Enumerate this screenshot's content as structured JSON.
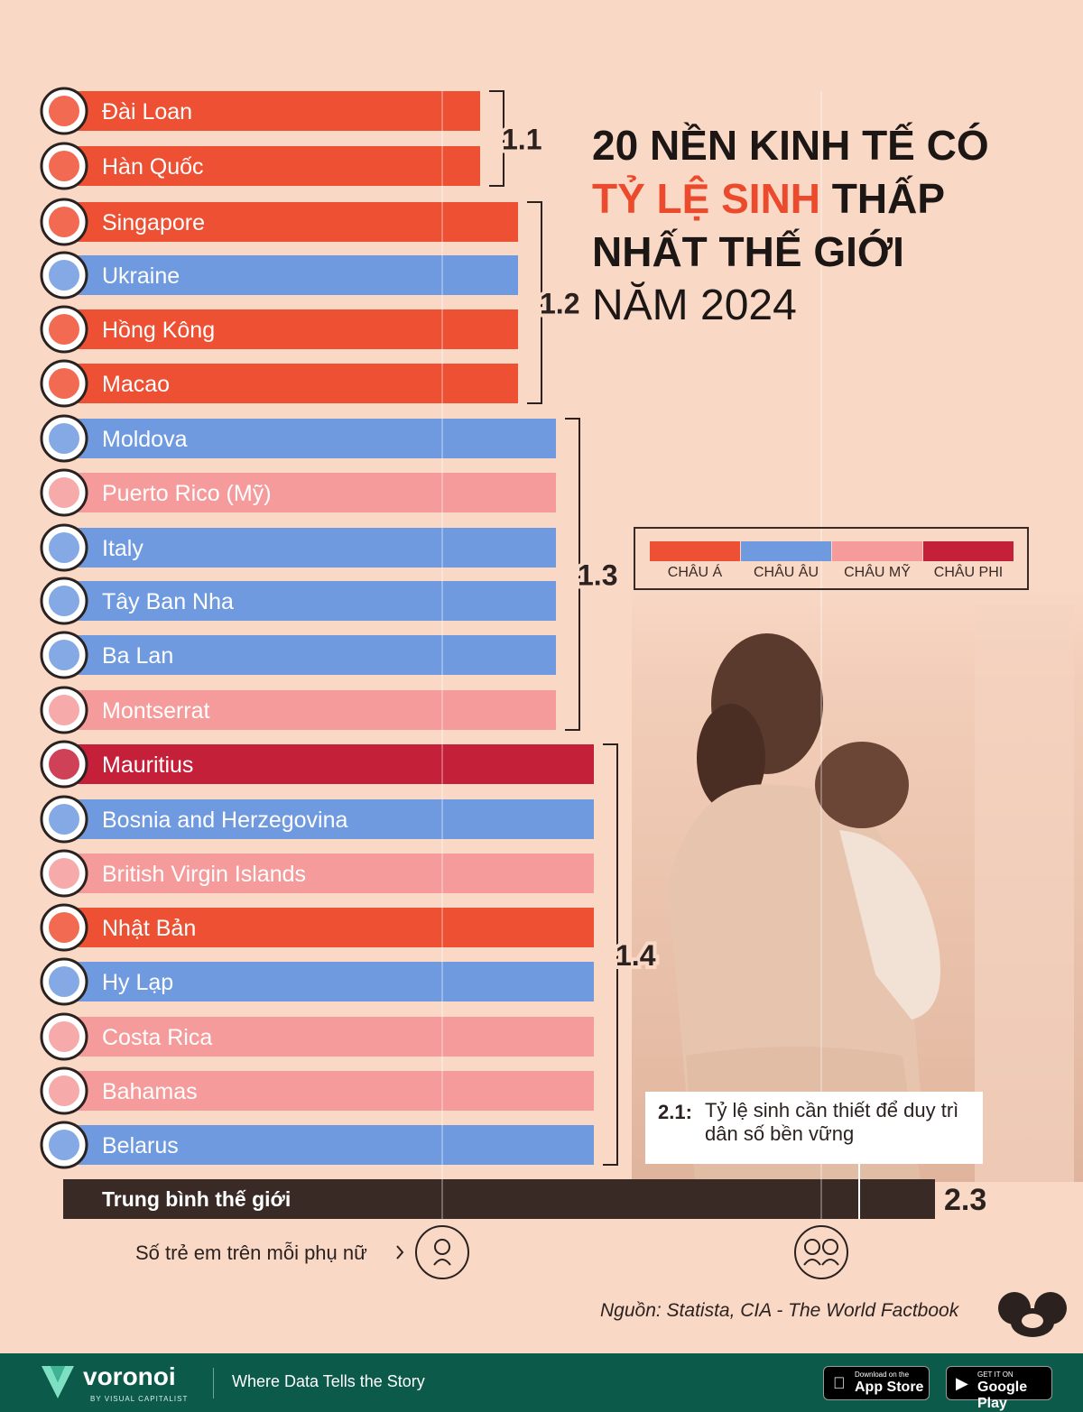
{
  "title": {
    "line1": "20 NỀN KINH TẾ CÓ",
    "accent": "TỶ LỆ SINH",
    "line2_rest": " THẤP",
    "line3": "NHẤT THẾ GIỚI",
    "line4": "NĂM 2024"
  },
  "legend": [
    {
      "label": "CHÂU Á",
      "color": "#ee5033"
    },
    {
      "label": "CHÂU ÂU",
      "color": "#6f9ae0"
    },
    {
      "label": "CHÂU MỸ",
      "color": "#f59b9b"
    },
    {
      "label": "CHÂU PHI",
      "color": "#c5203a"
    }
  ],
  "chart_data": {
    "type": "bar",
    "orientation": "horizontal",
    "unit": "Số trẻ em trên mỗi phụ nữ",
    "categories": [
      "Đài Loan",
      "Hàn Quốc",
      "Singapore",
      "Ukraine",
      "Hồng Kông",
      "Macao",
      "Moldova",
      "Puerto Rico (Mỹ)",
      "Italy",
      "Tây Ban Nha",
      "Ba Lan",
      "Montserrat",
      "Mauritius",
      "Bosnia and Herzegovina",
      "British Virgin Islands",
      "Nhật Bản",
      "Hy Lạp",
      "Costa Rica",
      "Bahamas",
      "Belarus"
    ],
    "values": [
      1.1,
      1.1,
      1.2,
      1.2,
      1.2,
      1.2,
      1.3,
      1.3,
      1.3,
      1.3,
      1.3,
      1.3,
      1.4,
      1.4,
      1.4,
      1.4,
      1.4,
      1.4,
      1.4,
      1.4
    ],
    "regions": [
      "CHÂU Á",
      "CHÂU Á",
      "CHÂU Á",
      "CHÂU ÂU",
      "CHÂU Á",
      "CHÂU Á",
      "CHÂU ÂU",
      "CHÂU MỸ",
      "CHÂU ÂU",
      "CHÂU ÂU",
      "CHÂU ÂU",
      "CHÂU MỸ",
      "CHÂU PHI",
      "CHÂU ÂU",
      "CHÂU MỸ",
      "CHÂU Á",
      "CHÂU ÂU",
      "CHÂU MỸ",
      "CHÂU MỸ",
      "CHÂU ÂU"
    ],
    "group_labels": [
      "1.1",
      "1.2",
      "1.3",
      "1.4"
    ],
    "world_average": {
      "label": "Trung bình thế giới",
      "value": 2.3,
      "value_label": "2.3"
    },
    "replacement_rate": {
      "key": "2.1:",
      "value": 2.1,
      "text": "Tỷ lệ sinh cần thiết để duy trì dân số bền vững"
    },
    "axis_label": "Số trẻ em trên mỗi phụ nữ",
    "reference_lines": [
      1,
      2
    ]
  },
  "source": "Nguồn: Statista, CIA - The World Factbook",
  "footer": {
    "brand": "voronoi",
    "brand_sub": "BY VISUAL CAPITALIST",
    "tagline": "Where Data Tells the Story",
    "appstore_small": "Download on the",
    "appstore_big": "App Store",
    "gplay_small": "GET IT ON",
    "gplay_big": "Google Play"
  }
}
